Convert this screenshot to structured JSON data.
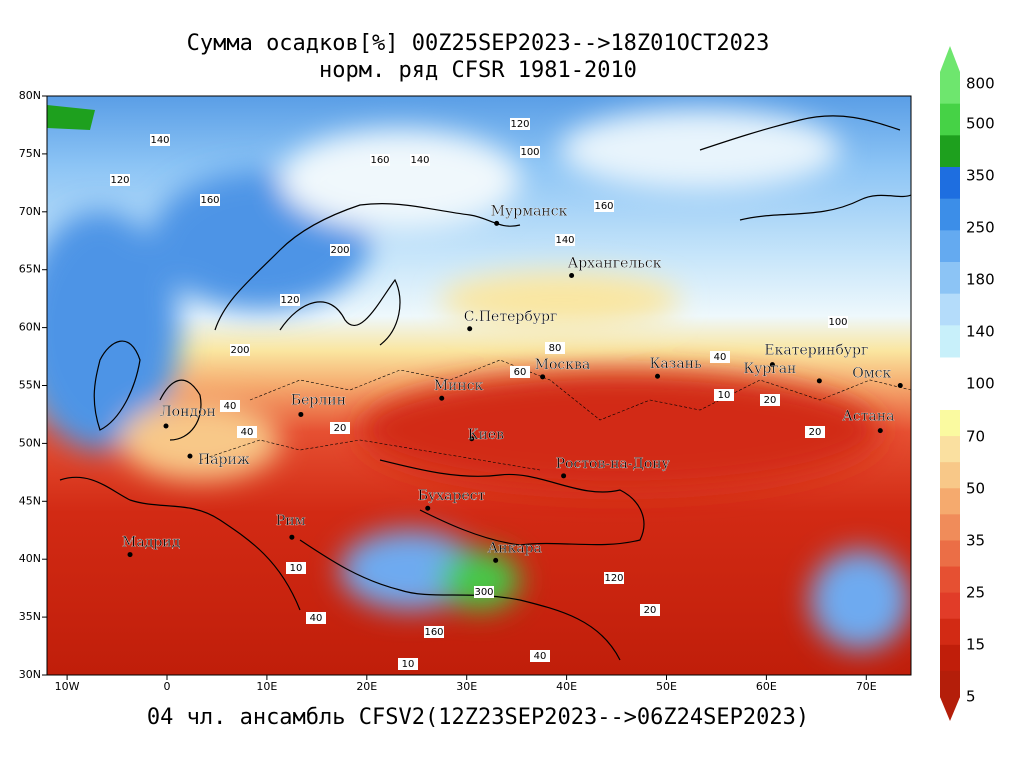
{
  "header": {
    "title": "Сумма осадков[%] 00Z25SEP2023-->18Z01OCT2023",
    "subtitle": "норм. ряд CFSR 1981-2010"
  },
  "footer": "04 чл. ансамбль CFSV2(12Z23SEP2023-->06Z24SEP2023)",
  "map": {
    "lon_ticks": [
      {
        "value": -10,
        "label": "10W"
      },
      0,
      {
        "value": 10,
        "label": "10E"
      },
      {
        "value": 20,
        "label": "20E"
      },
      {
        "value": 30,
        "label": "30E"
      },
      {
        "value": 40,
        "label": "40E"
      },
      {
        "value": 50,
        "label": "50E"
      },
      {
        "value": 60,
        "label": "60E"
      },
      {
        "value": 70,
        "label": "70E"
      }
    ],
    "lat_ticks": [
      {
        "value": 80,
        "label": "80N"
      },
      {
        "value": 75,
        "label": "75N"
      },
      {
        "value": 70,
        "label": "70N"
      },
      {
        "value": 65,
        "label": "65N"
      },
      {
        "value": 60,
        "label": "60N"
      },
      {
        "value": 55,
        "label": "55N"
      },
      {
        "value": 50,
        "label": "50N"
      },
      {
        "value": 45,
        "label": "45N"
      },
      {
        "value": 40,
        "label": "40N"
      },
      {
        "value": 35,
        "label": "35N"
      },
      {
        "value": 30,
        "label": "30N"
      }
    ],
    "cities": [
      "Мурманск",
      "Архангельск",
      "С.Петербург",
      "Москва",
      "Казань",
      "Екатеринбург",
      "Курган",
      "Омск",
      "Астана",
      "Минск",
      "Киев",
      "Берлин",
      "Лондон",
      "Париж",
      "Бухарест",
      "Ростов-на-Дону",
      "Рим",
      "Мадрид",
      "Анкара"
    ],
    "contour_labels": [
      "120",
      "140",
      "160",
      "200",
      "160",
      "120",
      "140",
      "100",
      "120",
      "140",
      "160",
      "200",
      "80",
      "60",
      "40",
      "20",
      "40",
      "20",
      "10",
      "40",
      "40",
      "10",
      "20",
      "300",
      "160",
      "40",
      "20",
      "120",
      "100",
      "10"
    ]
  },
  "colorbar": {
    "labels": [
      "800",
      "500",
      "350",
      "250",
      "180",
      "140",
      "100",
      "70",
      "50",
      "35",
      "25",
      "15",
      "5"
    ],
    "upper_colors": [
      "#6ee66e",
      "#46d246",
      "#1ea01e",
      "#1e6ee0",
      "#3c8ee8",
      "#64aaf0",
      "#8cc4f5",
      "#b4dcfa",
      "#c8f0fa"
    ],
    "lower_colors": [
      "#fafaa0",
      "#fae0a0",
      "#f8c888",
      "#f5aa6e",
      "#f08c5a",
      "#eb6e46",
      "#e65032",
      "#e13c28",
      "#d22a14",
      "#c01e0a",
      "#b41e0a"
    ]
  }
}
